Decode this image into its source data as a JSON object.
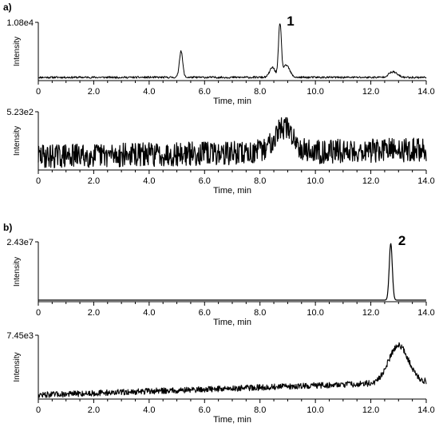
{
  "figure": {
    "panel_labels": [
      "a)",
      "b)"
    ]
  },
  "chart_data": [
    {
      "type": "line",
      "panel": "a)",
      "ylabel": "Intensity",
      "ymax_label": "1.08e4",
      "xlabel": "Time, min",
      "xlim": [
        0,
        14
      ],
      "xticks": [
        "0",
        "2.0",
        "4.0",
        "6.0",
        "8.0",
        "10.0",
        "12.0",
        "14.0"
      ],
      "annotation": "1",
      "annotation_x": 8.7,
      "peaks": [
        {
          "center": 5.15,
          "height": 0.48,
          "width": 0.06
        },
        {
          "center": 8.45,
          "height": 0.18,
          "width": 0.1
        },
        {
          "center": 8.72,
          "height": 0.98,
          "width": 0.05
        },
        {
          "center": 8.95,
          "height": 0.22,
          "width": 0.12
        },
        {
          "center": 12.8,
          "height": 0.1,
          "width": 0.15
        }
      ]
    },
    {
      "type": "line",
      "panel": "a)",
      "ylabel": "Intensity",
      "ymax_label": "5.23e2",
      "xlabel": "Time, min",
      "xlim": [
        0,
        14
      ],
      "xticks": [
        "0",
        "2.0",
        "4.0",
        "6.0",
        "8.0",
        "10.0",
        "12.0",
        "14.0"
      ],
      "peaks": [
        {
          "center": 8.85,
          "height": 0.45,
          "width": 0.35
        }
      ]
    },
    {
      "type": "line",
      "panel": "b)",
      "ylabel": "Intensity",
      "ymax_label": "2.43e7",
      "xlabel": "Time, min",
      "xlim": [
        0,
        14
      ],
      "xticks": [
        "0",
        "2.0",
        "4.0",
        "6.0",
        "8.0",
        "10.0",
        "12.0",
        "14.0"
      ],
      "annotation": "2",
      "annotation_x": 12.72,
      "peaks": [
        {
          "center": 12.72,
          "height": 1.0,
          "width": 0.055
        }
      ]
    },
    {
      "type": "line",
      "panel": "b)",
      "ylabel": "Intensity",
      "ymax_label": "7.45e3",
      "xlabel": "Time, min",
      "xlim": [
        0,
        14
      ],
      "xticks": [
        "0",
        "2.0",
        "4.0",
        "6.0",
        "8.0",
        "10.0",
        "12.0",
        "14.0"
      ],
      "peaks": [
        {
          "center": 13.0,
          "height": 0.62,
          "width": 0.35
        }
      ]
    }
  ]
}
